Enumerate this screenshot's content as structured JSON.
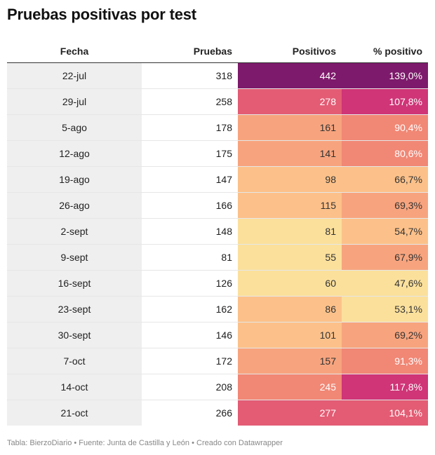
{
  "title": "Pruebas positivas por test",
  "footer": "Tabla: BierzoDiario • Fuente: Junta de Castilla y León • Creado con Datawrapper",
  "chart_data": {
    "type": "table",
    "columns": [
      "Fecha",
      "Pruebas",
      "Positivos",
      "% positivo"
    ],
    "rows": [
      {
        "fecha": "22-jul",
        "pruebas": 318,
        "positivos": 442,
        "pct": 139.0,
        "pct_label": "139,0%"
      },
      {
        "fecha": "29-jul",
        "pruebas": 258,
        "positivos": 278,
        "pct": 107.8,
        "pct_label": "107,8%"
      },
      {
        "fecha": "5-ago",
        "pruebas": 178,
        "positivos": 161,
        "pct": 90.4,
        "pct_label": "90,4%"
      },
      {
        "fecha": "12-ago",
        "pruebas": 175,
        "positivos": 141,
        "pct": 80.6,
        "pct_label": "80,6%"
      },
      {
        "fecha": "19-ago",
        "pruebas": 147,
        "positivos": 98,
        "pct": 66.7,
        "pct_label": "66,7%"
      },
      {
        "fecha": "26-ago",
        "pruebas": 166,
        "positivos": 115,
        "pct": 69.3,
        "pct_label": "69,3%"
      },
      {
        "fecha": "2-sept",
        "pruebas": 148,
        "positivos": 81,
        "pct": 54.7,
        "pct_label": "54,7%"
      },
      {
        "fecha": "9-sept",
        "pruebas": 81,
        "positivos": 55,
        "pct": 67.9,
        "pct_label": "67,9%"
      },
      {
        "fecha": "16-sept",
        "pruebas": 126,
        "positivos": 60,
        "pct": 47.6,
        "pct_label": "47,6%"
      },
      {
        "fecha": "23-sept",
        "pruebas": 162,
        "positivos": 86,
        "pct": 53.1,
        "pct_label": "53,1%"
      },
      {
        "fecha": "30-sept",
        "pruebas": 146,
        "positivos": 101,
        "pct": 69.2,
        "pct_label": "69,2%"
      },
      {
        "fecha": "7-oct",
        "pruebas": 172,
        "positivos": 157,
        "pct": 91.3,
        "pct_label": "91,3%"
      },
      {
        "fecha": "14-oct",
        "pruebas": 208,
        "positivos": 245,
        "pct": 117.8,
        "pct_label": "117,8%"
      },
      {
        "fecha": "21-oct",
        "pruebas": 266,
        "positivos": 277,
        "pct": 104.1,
        "pct_label": "104,1%"
      }
    ],
    "heatmap_palette": [
      "#fbe09c",
      "#fcc18a",
      "#f7a47e",
      "#f18775",
      "#e35c74",
      "#cf3577",
      "#b21f7a",
      "#7d1a6b"
    ],
    "heatmap_dark_text": "#333333",
    "heatmap_light_text": "#ffffff"
  }
}
